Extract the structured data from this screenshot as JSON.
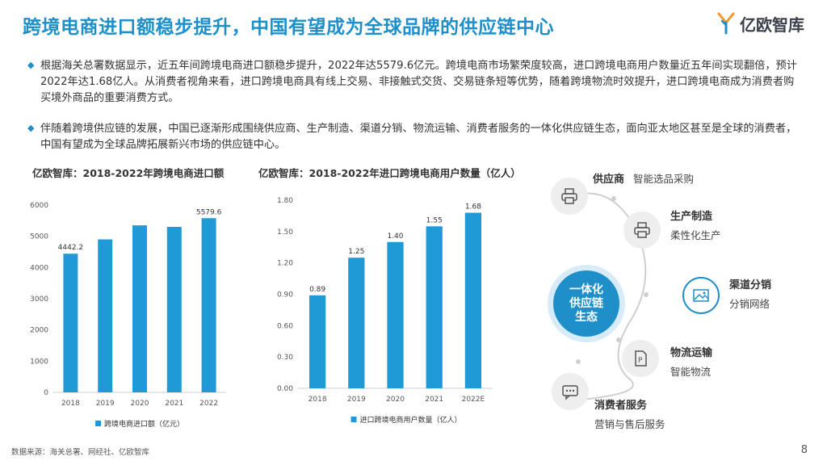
{
  "header": {
    "title": "跨境电商进口额稳步提升，中国有望成为全球品牌的供应链中心",
    "logo_text": "亿欧智库"
  },
  "bullets": [
    "根据海关总署数据显示，近五年间跨境电商进口额稳步提升，2022年达5579.6亿元。跨境电商市场繁荣度较高，进口跨境电商用户数量近五年间实现翻倍，预计2022年达1.68亿人。从消费者视角来看，进口跨境电商具有线上交易、非接触式交货、交易链条短等优势，随着跨境物流时效提升，进口跨境电商成为消费者购买境外商品的重要消费方式。",
    "伴随着跨境供应链的发展，中国已逐渐形成围绕供应商、生产制造、渠道分销、物流运输、消费者服务的一体化供应链生态，面向亚太地区甚至是全球的消费者，中国有望成为全球品牌拓展新兴市场的供应链中心。"
  ],
  "chart_data": [
    {
      "type": "bar",
      "title": "亿欧智库：2018-2022年跨境电商进口额",
      "categories": [
        "2018",
        "2019",
        "2020",
        "2021",
        "2022"
      ],
      "series": [
        {
          "name": "跨境电商进口额（亿元）",
          "values": [
            4442.2,
            4900,
            5350,
            5300,
            5579.6
          ]
        }
      ],
      "data_labels": [
        "4442.2",
        "",
        "",
        "",
        "5579.6"
      ],
      "ylim": [
        0,
        6000
      ],
      "yticks": [
        "0",
        "1000",
        "2000",
        "3000",
        "4000",
        "5000",
        "6000"
      ],
      "color": "#1f9ad6",
      "legend": "bottom"
    },
    {
      "type": "bar",
      "title": "亿欧智库：2018-2022年进口跨境电商用户数量（亿人）",
      "categories": [
        "2018",
        "2019",
        "2020",
        "2021",
        "2022E"
      ],
      "series": [
        {
          "name": "进口跨境电商用户数量（亿人）",
          "values": [
            0.89,
            1.25,
            1.4,
            1.55,
            1.68
          ]
        }
      ],
      "data_labels": [
        "0.89",
        "1.25",
        "1.40",
        "1.55",
        "1.68"
      ],
      "ylim": [
        0,
        1.8
      ],
      "yticks": [
        "0.00",
        "0.30",
        "0.60",
        "0.90",
        "1.20",
        "1.50",
        "1.80"
      ],
      "color": "#1f9ad6",
      "legend": "bottom"
    }
  ],
  "diagram": {
    "center": [
      "一体化",
      "供应链",
      "生态"
    ],
    "nodes": [
      {
        "title": "供应商",
        "desc": "智能选品采购",
        "icon": "printer-icon"
      },
      {
        "title": "生产制造",
        "desc": "柔性化生产",
        "icon": "printer-icon"
      },
      {
        "title": "渠道分销",
        "desc": "分销网络",
        "icon": "image-icon"
      },
      {
        "title": "物流运输",
        "desc": "智能物流",
        "icon": "parking-document-icon"
      },
      {
        "title": "消费者服务",
        "desc": "营销与售后服务",
        "icon": "chat-icon"
      }
    ]
  },
  "footer": {
    "source": "数据来源：海关总署、网经社、亿欧智库",
    "page": "8"
  }
}
